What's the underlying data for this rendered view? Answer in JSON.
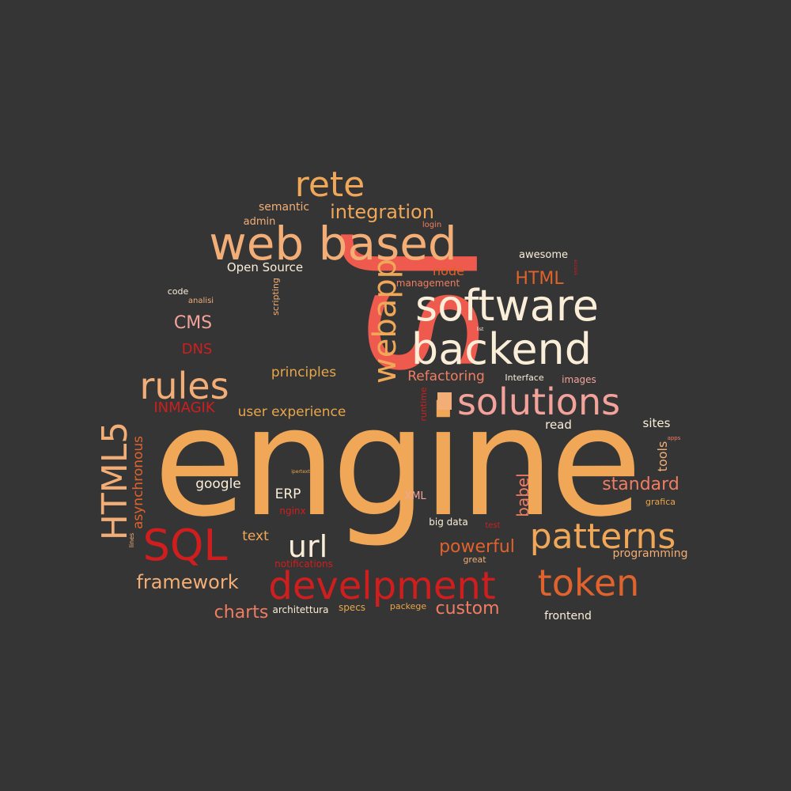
{
  "background": "#353535",
  "palette": {
    "orange": "#f0a858",
    "peach": "#f2ae76",
    "salmon": "#f07d62",
    "coral": "#ee5a4e",
    "red": "#d01e1e",
    "dark_orange": "#e0622c",
    "cream": "#faeed8",
    "pink": "#f3a39b",
    "gold": "#e8a64a"
  },
  "words": [
    {
      "text": "engine",
      "color": "orange"
    },
    {
      "text": "JS",
      "color": "coral"
    },
    {
      "text": "web based",
      "color": "peach"
    },
    {
      "text": "software",
      "color": "cream"
    },
    {
      "text": "backend",
      "color": "cream"
    },
    {
      "text": "solutions",
      "color": "pink"
    },
    {
      "text": "patterns",
      "color": "orange"
    },
    {
      "text": "develpment",
      "color": "red"
    },
    {
      "text": "token",
      "color": "dark_orange"
    },
    {
      "text": "SQL",
      "color": "red"
    },
    {
      "text": "HTML5",
      "color": "peach"
    },
    {
      "text": "rules",
      "color": "peach"
    },
    {
      "text": "rete",
      "color": "orange"
    },
    {
      "text": "webapp",
      "color": "orange"
    },
    {
      "text": "url",
      "color": "cream"
    },
    {
      "text": "integration",
      "color": "orange"
    },
    {
      "text": "framework",
      "color": "peach"
    },
    {
      "text": "charts",
      "color": "salmon"
    },
    {
      "text": "custom",
      "color": "salmon"
    },
    {
      "text": "powerful",
      "color": "dark_orange"
    },
    {
      "text": "standard",
      "color": "salmon"
    },
    {
      "text": "HTML",
      "color": "dark_orange"
    },
    {
      "text": "CMS",
      "color": "pink"
    },
    {
      "text": "DNS",
      "color": "red"
    },
    {
      "text": "INMAGIK",
      "color": "red"
    },
    {
      "text": "principles",
      "color": "gold"
    },
    {
      "text": "Refactoring",
      "color": "salmon"
    },
    {
      "text": "user experience",
      "color": "gold"
    },
    {
      "text": "asynchronous",
      "color": "dark_orange"
    },
    {
      "text": "babel",
      "color": "salmon"
    },
    {
      "text": "tools",
      "color": "peach"
    },
    {
      "text": "google",
      "color": "cream"
    },
    {
      "text": "ERP",
      "color": "cream"
    },
    {
      "text": "text",
      "color": "orange"
    },
    {
      "text": "Open Source",
      "color": "cream"
    },
    {
      "text": "node",
      "color": "dark_orange"
    },
    {
      "text": "sites",
      "color": "cream"
    },
    {
      "text": "read",
      "color": "cream"
    },
    {
      "text": "awesome",
      "color": "cream"
    },
    {
      "text": "frontend",
      "color": "cream"
    },
    {
      "text": "programming",
      "color": "peach"
    },
    {
      "text": "semantic",
      "color": "peach"
    },
    {
      "text": "admin",
      "color": "peach"
    },
    {
      "text": "login",
      "color": "salmon"
    },
    {
      "text": "management",
      "color": "salmon"
    },
    {
      "text": "scripting",
      "color": "peach"
    },
    {
      "text": "code",
      "color": "cream"
    },
    {
      "text": "analisi",
      "color": "peach"
    },
    {
      "text": "Interface",
      "color": "cream"
    },
    {
      "text": "images",
      "color": "pink"
    },
    {
      "text": "runtime",
      "color": "red"
    },
    {
      "text": "XML",
      "color": "pink"
    },
    {
      "text": "nginx",
      "color": "red"
    },
    {
      "text": "big data",
      "color": "cream"
    },
    {
      "text": "test",
      "color": "red"
    },
    {
      "text": "great",
      "color": "peach"
    },
    {
      "text": "notifications",
      "color": "red"
    },
    {
      "text": "architettura",
      "color": "cream"
    },
    {
      "text": "specs",
      "color": "gold"
    },
    {
      "text": "packege",
      "color": "gold"
    },
    {
      "text": "grafica",
      "color": "gold"
    },
    {
      "text": "lines",
      "color": "peach"
    },
    {
      "text": "apps",
      "color": "salmon"
    },
    {
      "text": "ipertext",
      "color": "gold"
    },
    {
      "text": "list",
      "color": "cream"
    },
    {
      "text": "access",
      "color": "red"
    }
  ]
}
